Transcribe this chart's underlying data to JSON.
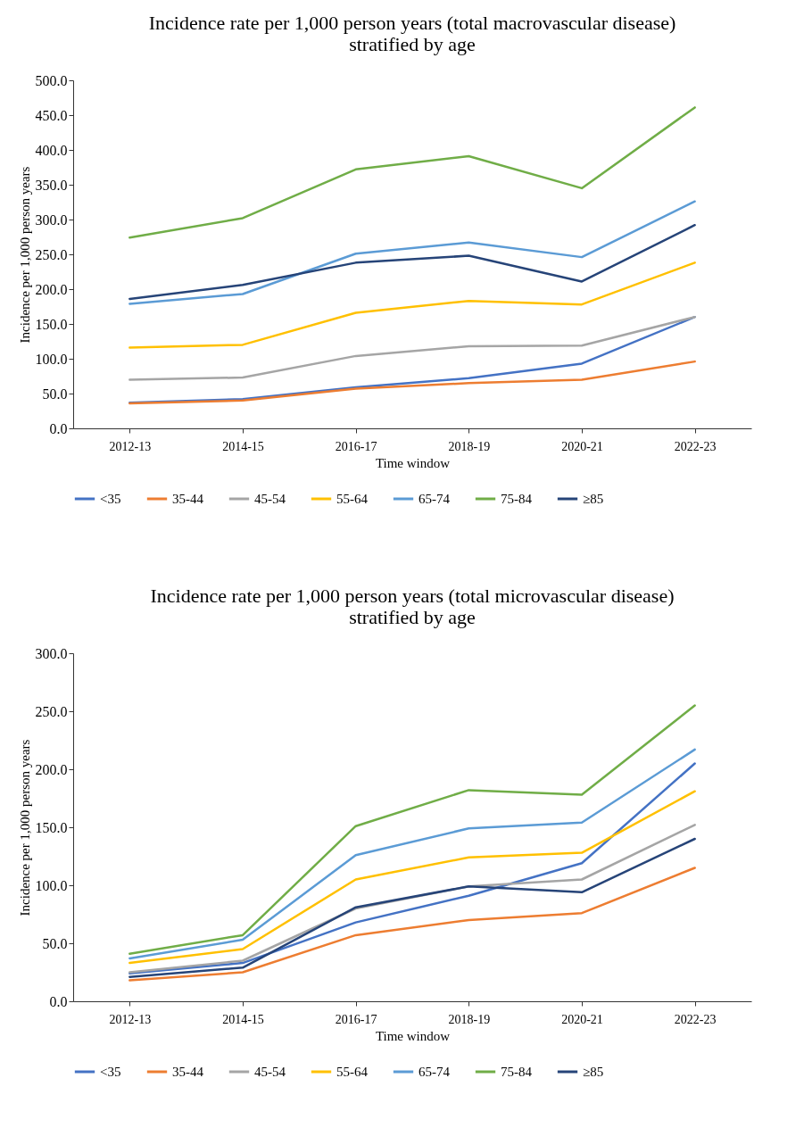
{
  "chart_data": [
    {
      "type": "line",
      "title": "Incidence rate per 1,000 person years (total macrovascular disease)\nstratified by age",
      "xlabel": "Time window",
      "ylabel": "Incidence per 1,000 person years",
      "categories": [
        "2012-13",
        "2014-15",
        "2016-17",
        "2018-19",
        "2020-21",
        "2022-23"
      ],
      "ylim": [
        0,
        500
      ],
      "yticks": [
        {
          "value": 0,
          "label": "0.0"
        },
        {
          "value": 50,
          "label": "50.0"
        },
        {
          "value": 100,
          "label": "100.0"
        },
        {
          "value": 150,
          "label": "150.0"
        },
        {
          "value": 200,
          "label": "200.0"
        },
        {
          "value": 250,
          "label": "250.0"
        },
        {
          "value": 300,
          "label": "300.0"
        },
        {
          "value": 350,
          "label": "350.0"
        },
        {
          "value": 400,
          "label": "400.0"
        },
        {
          "value": 450,
          "label": "450.0"
        },
        {
          "value": 500,
          "label": "500.0"
        }
      ],
      "grid": false,
      "legend": "bottom",
      "series": [
        {
          "name": "<35",
          "color": "#4472c4",
          "values": [
            37,
            42,
            59,
            72,
            93,
            160
          ]
        },
        {
          "name": "35-44",
          "color": "#ed7d31",
          "values": [
            36,
            40,
            57,
            65,
            70,
            96
          ]
        },
        {
          "name": "45-54",
          "color": "#a5a5a5",
          "values": [
            70,
            73,
            104,
            118,
            119,
            160
          ]
        },
        {
          "name": "55-64",
          "color": "#ffc000",
          "values": [
            116,
            120,
            166,
            183,
            178,
            238
          ]
        },
        {
          "name": "65-74",
          "color": "#5b9bd5",
          "values": [
            179,
            193,
            251,
            267,
            246,
            326
          ]
        },
        {
          "name": "75-84",
          "color": "#70ad47",
          "values": [
            274,
            302,
            372,
            391,
            345,
            461
          ]
        },
        {
          "name": "≥85",
          "color": "#264478",
          "values": [
            186,
            206,
            238,
            248,
            211,
            292
          ]
        }
      ]
    },
    {
      "type": "line",
      "title": "Incidence rate per 1,000 person years (total microvascular disease)\nstratified by age",
      "xlabel": "Time window",
      "ylabel": "Incidence per 1,000 person years",
      "categories": [
        "2012-13",
        "2014-15",
        "2016-17",
        "2018-19",
        "2020-21",
        "2022-23"
      ],
      "ylim": [
        0,
        300
      ],
      "yticks": [
        {
          "value": 0,
          "label": "0.0"
        },
        {
          "value": 50,
          "label": "50.0"
        },
        {
          "value": 100,
          "label": "100.0"
        },
        {
          "value": 150,
          "label": "150.0"
        },
        {
          "value": 200,
          "label": "200.0"
        },
        {
          "value": 250,
          "label": "250.0"
        },
        {
          "value": 300,
          "label": "300.0"
        }
      ],
      "grid": false,
      "legend": "bottom",
      "series": [
        {
          "name": "<35",
          "color": "#4472c4",
          "values": [
            24,
            33,
            68,
            91,
            119,
            205
          ]
        },
        {
          "name": "35-44",
          "color": "#ed7d31",
          "values": [
            18,
            25,
            57,
            70,
            76,
            115
          ]
        },
        {
          "name": "45-54",
          "color": "#a5a5a5",
          "values": [
            25,
            35,
            80,
            99,
            105,
            152
          ]
        },
        {
          "name": "55-64",
          "color": "#ffc000",
          "values": [
            33,
            45,
            105,
            124,
            128,
            181
          ]
        },
        {
          "name": "65-74",
          "color": "#5b9bd5",
          "values": [
            37,
            53,
            126,
            149,
            154,
            217
          ]
        },
        {
          "name": "75-84",
          "color": "#70ad47",
          "values": [
            41,
            57,
            151,
            182,
            178,
            255
          ]
        },
        {
          "name": "≥85",
          "color": "#264478",
          "values": [
            21,
            29,
            81,
            99,
            94,
            140
          ]
        }
      ]
    }
  ]
}
